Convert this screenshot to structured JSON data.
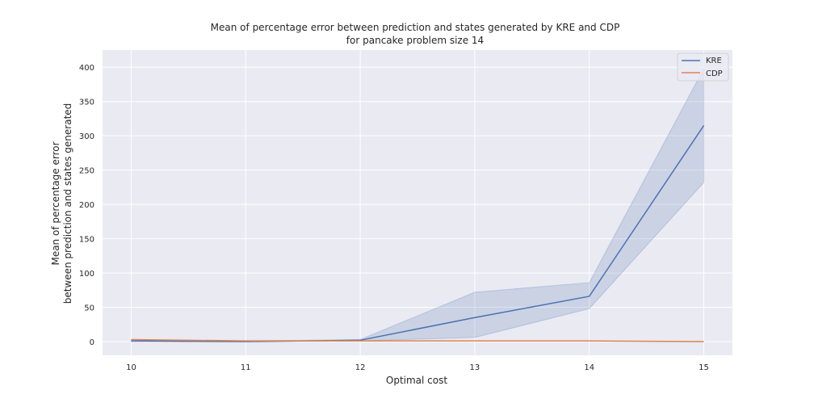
{
  "chart_data": {
    "type": "line",
    "title": [
      "Mean of percentage error between prediction and states generated by KRE and CDP",
      "for pancake problem size 14"
    ],
    "xlabel": "Optimal cost",
    "ylabel": [
      "Mean of percentage error",
      "between prediction and states generated"
    ],
    "x": [
      10,
      11,
      12,
      13,
      14,
      15
    ],
    "xticks": [
      "10",
      "11",
      "12",
      "13",
      "14",
      "15"
    ],
    "yticks": [
      0,
      50,
      100,
      150,
      200,
      250,
      300,
      350,
      400
    ],
    "xlim": [
      9.75,
      15.25
    ],
    "ylim": [
      -20,
      425
    ],
    "grid": true,
    "legend_position": "top-right",
    "series": [
      {
        "name": "KRE",
        "color": "#4c72b0",
        "values": [
          1,
          0,
          2,
          35,
          66,
          315
        ],
        "ci_lower": [
          0,
          0,
          1,
          6,
          48,
          232
        ],
        "ci_upper": [
          2,
          1,
          3,
          72,
          86,
          398
        ]
      },
      {
        "name": "CDP",
        "color": "#dd8452",
        "values": [
          3,
          1,
          1,
          1,
          1,
          0
        ]
      }
    ]
  }
}
